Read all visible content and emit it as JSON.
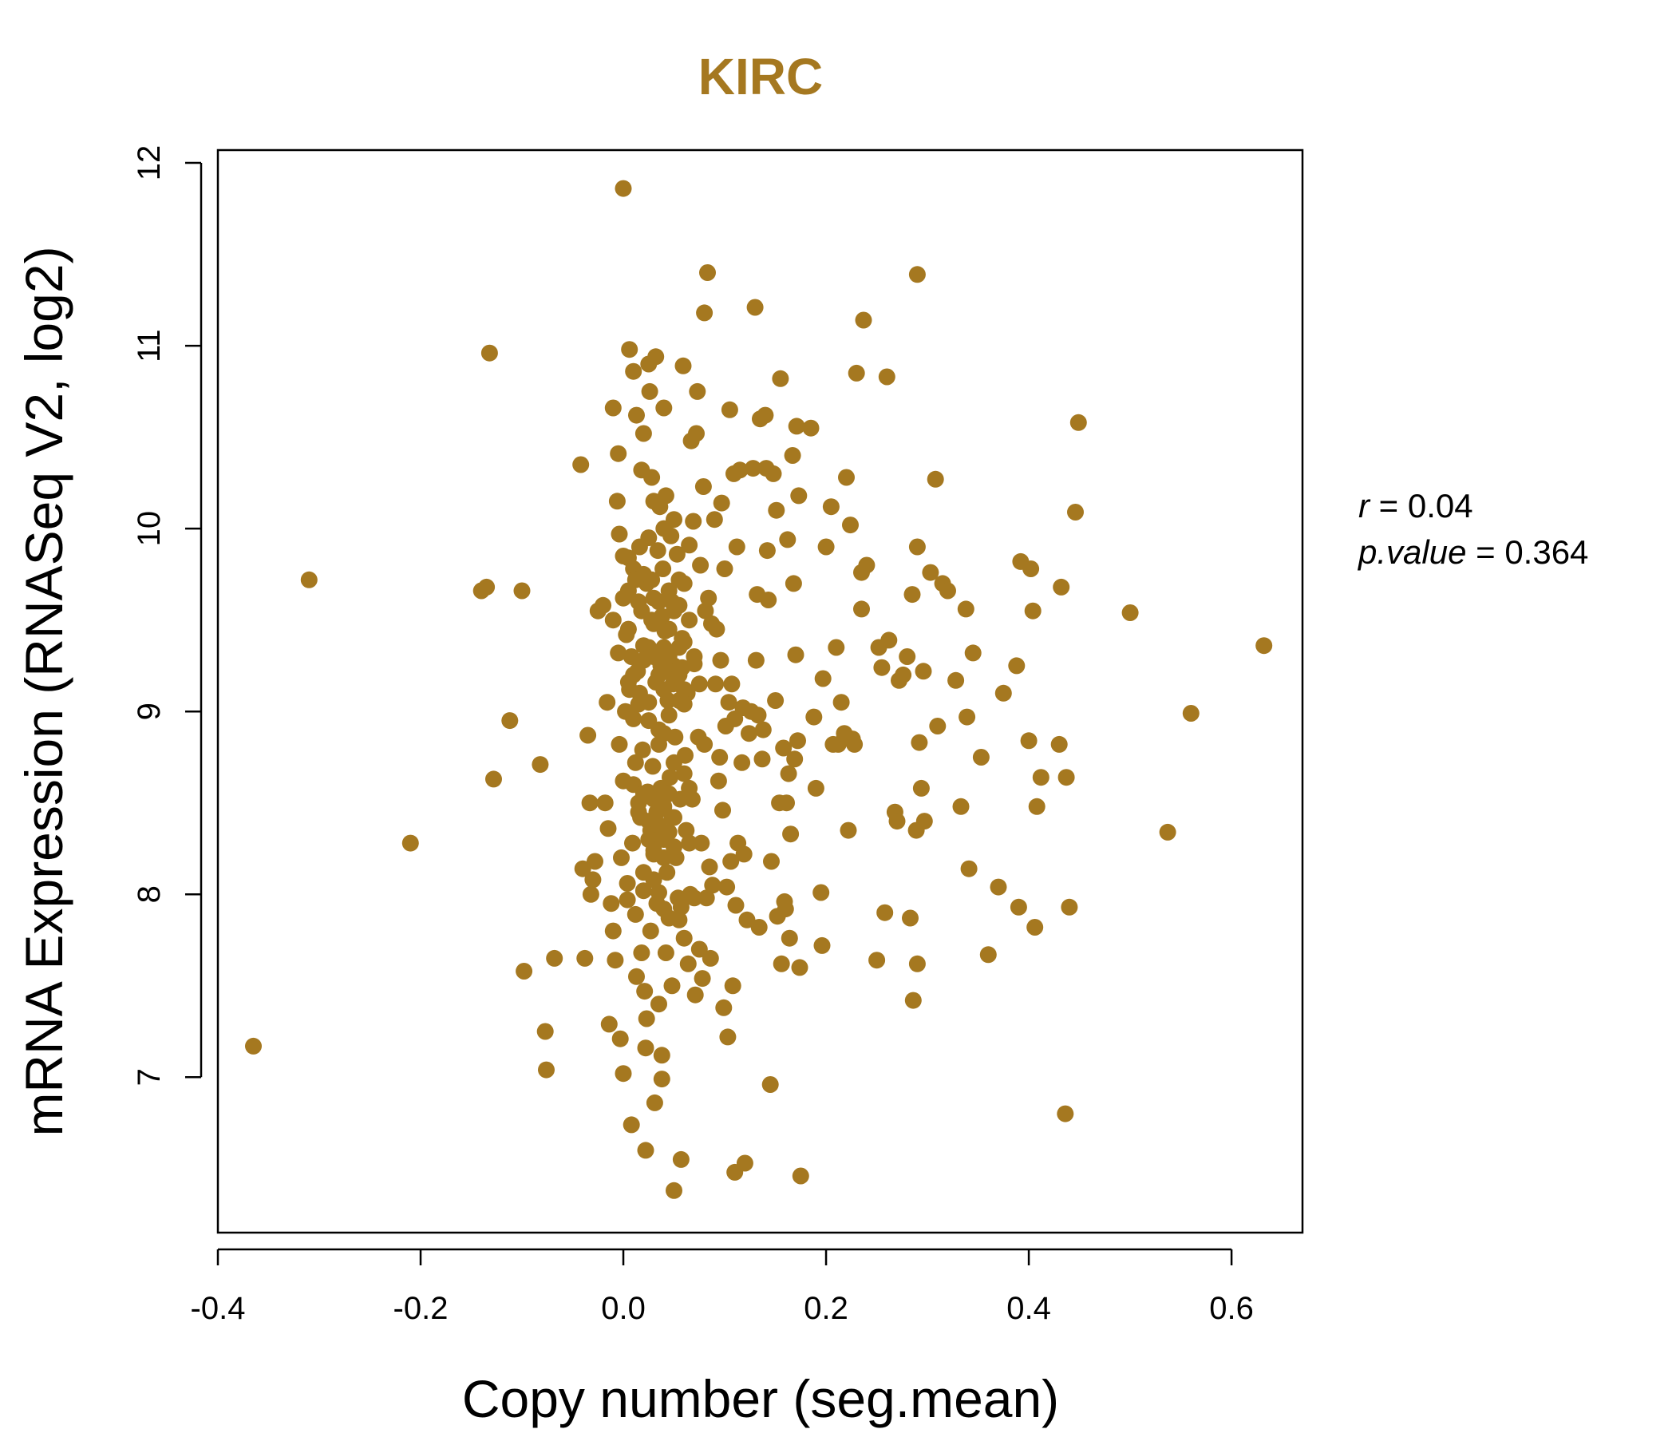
{
  "chart_data": {
    "type": "scatter",
    "title": "KIRC",
    "xlabel": "Copy number (seg.mean)",
    "ylabel": "mRNA Expression (RNASeq V2, log2)",
    "xlim": [
      -0.4,
      0.67
    ],
    "ylim": [
      6.15,
      12.07
    ],
    "x_ticks": [
      -0.4,
      -0.2,
      0.0,
      0.2,
      0.4,
      0.6
    ],
    "x_tick_labels": [
      "-0.4",
      "-0.2",
      "0.0",
      "0.2",
      "0.4",
      "0.6"
    ],
    "y_ticks": [
      7,
      8,
      9,
      10,
      11,
      12
    ],
    "y_tick_labels": [
      "7",
      "8",
      "9",
      "10",
      "11",
      "12"
    ],
    "grid": false,
    "colors": {
      "points": "#A57820",
      "title": "#A57820",
      "axes": "#000000"
    },
    "annotations": {
      "r_label": "r",
      "r_eq": " = ",
      "r_value": "0.04",
      "p_label": "p.value",
      "p_eq": " = ",
      "p_value": "0.364"
    },
    "points": [
      [
        -0.365,
        7.17
      ],
      [
        -0.31,
        9.72
      ],
      [
        -0.21,
        8.28
      ],
      [
        -0.14,
        9.66
      ],
      [
        -0.135,
        9.68
      ],
      [
        -0.132,
        10.96
      ],
      [
        -0.128,
        8.63
      ],
      [
        -0.112,
        8.95
      ],
      [
        -0.1,
        9.66
      ],
      [
        -0.098,
        7.58
      ],
      [
        -0.082,
        8.71
      ],
      [
        -0.077,
        7.25
      ],
      [
        -0.076,
        7.04
      ],
      [
        -0.068,
        7.65
      ],
      [
        -0.042,
        10.35
      ],
      [
        -0.04,
        8.14
      ],
      [
        -0.038,
        7.65
      ],
      [
        -0.035,
        8.87
      ],
      [
        -0.033,
        8.5
      ],
      [
        -0.032,
        8.0
      ],
      [
        -0.03,
        8.08
      ],
      [
        -0.028,
        8.18
      ],
      [
        -0.025,
        9.55
      ],
      [
        -0.02,
        9.58
      ],
      [
        -0.018,
        8.5
      ],
      [
        -0.016,
        9.05
      ],
      [
        -0.015,
        8.36
      ],
      [
        -0.014,
        7.29
      ],
      [
        -0.012,
        7.95
      ],
      [
        -0.01,
        7.8
      ],
      [
        -0.008,
        7.64
      ],
      [
        -0.01,
        10.66
      ],
      [
        -0.006,
        10.15
      ],
      [
        -0.005,
        10.41
      ],
      [
        -0.004,
        9.97
      ],
      [
        -0.004,
        8.82
      ],
      [
        -0.003,
        7.21
      ],
      [
        -0.002,
        8.2
      ],
      [
        0.0,
        11.86
      ],
      [
        0.0,
        9.62
      ],
      [
        0.0,
        7.02
      ],
      [
        0.0,
        8.62
      ],
      [
        0.002,
        9.0
      ],
      [
        0.003,
        9.42
      ],
      [
        0.004,
        8.06
      ],
      [
        0.004,
        7.97
      ],
      [
        0.005,
        9.84
      ],
      [
        0.006,
        10.98
      ],
      [
        0.006,
        9.12
      ],
      [
        0.008,
        9.3
      ],
      [
        0.008,
        6.74
      ],
      [
        0.009,
        8.28
      ],
      [
        0.01,
        10.86
      ],
      [
        0.01,
        9.78
      ],
      [
        0.01,
        8.96
      ],
      [
        0.012,
        7.89
      ],
      [
        0.012,
        8.72
      ],
      [
        0.013,
        7.55
      ],
      [
        0.013,
        10.62
      ],
      [
        0.014,
        9.22
      ],
      [
        0.015,
        8.5
      ],
      [
        0.016,
        9.1
      ],
      [
        0.016,
        9.9
      ],
      [
        0.017,
        8.42
      ],
      [
        0.018,
        7.68
      ],
      [
        0.018,
        10.32
      ],
      [
        0.019,
        8.79
      ],
      [
        0.02,
        10.52
      ],
      [
        0.02,
        9.36
      ],
      [
        0.02,
        8.12
      ],
      [
        0.021,
        7.47
      ],
      [
        0.022,
        6.6
      ],
      [
        0.022,
        7.16
      ],
      [
        0.023,
        7.32
      ],
      [
        0.023,
        9.7
      ],
      [
        0.024,
        8.56
      ],
      [
        0.025,
        10.9
      ],
      [
        0.025,
        9.05
      ],
      [
        0.026,
        10.75
      ],
      [
        0.027,
        8.35
      ],
      [
        0.027,
        7.8
      ],
      [
        0.028,
        9.5
      ],
      [
        0.028,
        10.28
      ],
      [
        0.029,
        8.7
      ],
      [
        0.03,
        9.62
      ],
      [
        0.03,
        10.15
      ],
      [
        0.03,
        8.22
      ],
      [
        0.031,
        6.86
      ],
      [
        0.032,
        10.94
      ],
      [
        0.032,
        9.16
      ],
      [
        0.033,
        8.45
      ],
      [
        0.033,
        7.95
      ],
      [
        0.034,
        9.88
      ],
      [
        0.035,
        8.01
      ],
      [
        0.035,
        7.4
      ],
      [
        0.036,
        10.12
      ],
      [
        0.037,
        9.25
      ],
      [
        0.037,
        8.58
      ],
      [
        0.038,
        7.12
      ],
      [
        0.038,
        6.99
      ],
      [
        0.039,
        9.78
      ],
      [
        0.04,
        10.66
      ],
      [
        0.04,
        8.88
      ],
      [
        0.04,
        8.3
      ],
      [
        0.041,
        9.44
      ],
      [
        0.042,
        7.68
      ],
      [
        0.042,
        10.18
      ],
      [
        0.043,
        8.12
      ],
      [
        0.044,
        9.06
      ],
      [
        0.045,
        9.3
      ],
      [
        0.045,
        7.87
      ],
      [
        0.046,
        8.64
      ],
      [
        0.047,
        9.96
      ],
      [
        0.048,
        8.42
      ],
      [
        0.048,
        7.5
      ],
      [
        0.049,
        9.15
      ],
      [
        0.05,
        6.38
      ],
      [
        0.05,
        9.55
      ],
      [
        0.051,
        8.86
      ],
      [
        0.052,
        8.2
      ],
      [
        0.053,
        9.86
      ],
      [
        0.054,
        7.98
      ],
      [
        0.055,
        9.72
      ],
      [
        0.056,
        8.52
      ],
      [
        0.057,
        6.55
      ],
      [
        0.057,
        7.93
      ],
      [
        0.058,
        9.24
      ],
      [
        0.059,
        10.89
      ],
      [
        0.06,
        9.38
      ],
      [
        0.061,
        8.76
      ],
      [
        0.062,
        8.35
      ],
      [
        0.063,
        9.1
      ],
      [
        0.064,
        7.62
      ],
      [
        0.065,
        9.91
      ],
      [
        0.066,
        8.0
      ],
      [
        0.067,
        10.48
      ],
      [
        0.068,
        8.52
      ],
      [
        0.069,
        10.04
      ],
      [
        0.07,
        9.26
      ],
      [
        0.071,
        7.45
      ],
      [
        0.072,
        10.52
      ],
      [
        0.073,
        10.75
      ],
      [
        0.074,
        8.86
      ],
      [
        0.075,
        7.7
      ],
      [
        0.076,
        9.8
      ],
      [
        0.077,
        8.28
      ],
      [
        0.078,
        7.54
      ],
      [
        0.079,
        10.23
      ],
      [
        0.08,
        11.18
      ],
      [
        0.08,
        8.82
      ],
      [
        0.081,
        9.55
      ],
      [
        0.082,
        7.98
      ],
      [
        0.083,
        11.4
      ],
      [
        0.084,
        9.62
      ],
      [
        0.085,
        8.15
      ],
      [
        0.086,
        7.65
      ],
      [
        0.087,
        9.48
      ],
      [
        0.088,
        8.05
      ],
      [
        0.09,
        10.05
      ],
      [
        0.091,
        9.15
      ],
      [
        0.092,
        9.45
      ],
      [
        0.094,
        8.62
      ],
      [
        0.095,
        8.75
      ],
      [
        0.096,
        9.28
      ],
      [
        0.097,
        10.14
      ],
      [
        0.098,
        8.46
      ],
      [
        0.099,
        7.38
      ],
      [
        0.1,
        9.78
      ],
      [
        0.101,
        8.92
      ],
      [
        0.102,
        8.04
      ],
      [
        0.103,
        7.22
      ],
      [
        0.104,
        9.05
      ],
      [
        0.105,
        10.65
      ],
      [
        0.106,
        8.18
      ],
      [
        0.107,
        9.15
      ],
      [
        0.108,
        7.5
      ],
      [
        0.109,
        10.3
      ],
      [
        0.11,
        6.48
      ],
      [
        0.11,
        8.96
      ],
      [
        0.111,
        7.94
      ],
      [
        0.112,
        9.9
      ],
      [
        0.113,
        8.28
      ],
      [
        0.115,
        10.32
      ],
      [
        0.117,
        8.72
      ],
      [
        0.118,
        9.02
      ],
      [
        0.119,
        8.22
      ],
      [
        0.12,
        6.53
      ],
      [
        0.122,
        7.86
      ],
      [
        0.124,
        8.88
      ],
      [
        0.126,
        9.0
      ],
      [
        0.128,
        10.33
      ],
      [
        0.13,
        11.21
      ],
      [
        0.131,
        9.28
      ],
      [
        0.132,
        9.64
      ],
      [
        0.133,
        8.98
      ],
      [
        0.134,
        7.82
      ],
      [
        0.135,
        10.6
      ],
      [
        0.137,
        8.74
      ],
      [
        0.138,
        8.9
      ],
      [
        0.14,
        10.62
      ],
      [
        0.141,
        10.33
      ],
      [
        0.142,
        9.88
      ],
      [
        0.143,
        9.61
      ],
      [
        0.145,
        6.96
      ],
      [
        0.146,
        8.18
      ],
      [
        0.148,
        10.3
      ],
      [
        0.15,
        9.06
      ],
      [
        0.151,
        10.1
      ],
      [
        0.152,
        7.88
      ],
      [
        0.154,
        8.5
      ],
      [
        0.155,
        10.82
      ],
      [
        0.156,
        7.62
      ],
      [
        0.158,
        8.8
      ],
      [
        0.159,
        7.96
      ],
      [
        0.16,
        7.92
      ],
      [
        0.161,
        8.5
      ],
      [
        0.162,
        9.94
      ],
      [
        0.163,
        8.66
      ],
      [
        0.164,
        7.76
      ],
      [
        0.165,
        8.33
      ],
      [
        0.167,
        10.4
      ],
      [
        0.168,
        9.7
      ],
      [
        0.169,
        8.74
      ],
      [
        0.17,
        9.31
      ],
      [
        0.171,
        10.56
      ],
      [
        0.172,
        8.84
      ],
      [
        0.173,
        10.18
      ],
      [
        0.174,
        7.6
      ],
      [
        0.175,
        6.46
      ],
      [
        0.185,
        10.55
      ],
      [
        0.188,
        8.97
      ],
      [
        0.19,
        8.58
      ],
      [
        0.195,
        8.01
      ],
      [
        0.196,
        7.72
      ],
      [
        0.197,
        9.18
      ],
      [
        0.2,
        9.9
      ],
      [
        0.205,
        10.12
      ],
      [
        0.207,
        8.82
      ],
      [
        0.21,
        9.35
      ],
      [
        0.212,
        8.82
      ],
      [
        0.215,
        9.05
      ],
      [
        0.218,
        8.88
      ],
      [
        0.22,
        10.28
      ],
      [
        0.222,
        8.35
      ],
      [
        0.224,
        10.02
      ],
      [
        0.226,
        8.85
      ],
      [
        0.228,
        8.82
      ],
      [
        0.23,
        10.85
      ],
      [
        0.235,
        9.76
      ],
      [
        0.235,
        9.56
      ],
      [
        0.237,
        11.14
      ],
      [
        0.24,
        9.8
      ],
      [
        0.25,
        7.64
      ],
      [
        0.252,
        9.35
      ],
      [
        0.255,
        9.24
      ],
      [
        0.258,
        7.9
      ],
      [
        0.26,
        10.83
      ],
      [
        0.262,
        9.39
      ],
      [
        0.268,
        8.45
      ],
      [
        0.27,
        8.4
      ],
      [
        0.272,
        9.17
      ],
      [
        0.276,
        9.2
      ],
      [
        0.28,
        9.3
      ],
      [
        0.283,
        7.87
      ],
      [
        0.285,
        9.64
      ],
      [
        0.286,
        7.42
      ],
      [
        0.289,
        8.35
      ],
      [
        0.29,
        11.39
      ],
      [
        0.29,
        9.9
      ],
      [
        0.29,
        7.62
      ],
      [
        0.292,
        8.83
      ],
      [
        0.294,
        8.58
      ],
      [
        0.296,
        9.22
      ],
      [
        0.297,
        8.4
      ],
      [
        0.303,
        9.76
      ],
      [
        0.308,
        10.27
      ],
      [
        0.31,
        8.92
      ],
      [
        0.315,
        9.7
      ],
      [
        0.32,
        9.66
      ],
      [
        0.328,
        9.17
      ],
      [
        0.333,
        8.48
      ],
      [
        0.338,
        9.56
      ],
      [
        0.339,
        8.97
      ],
      [
        0.341,
        8.14
      ],
      [
        0.345,
        9.32
      ],
      [
        0.353,
        8.75
      ],
      [
        0.36,
        7.67
      ],
      [
        0.37,
        8.04
      ],
      [
        0.375,
        9.1
      ],
      [
        0.388,
        9.25
      ],
      [
        0.39,
        7.93
      ],
      [
        0.392,
        9.82
      ],
      [
        0.4,
        8.84
      ],
      [
        0.402,
        9.78
      ],
      [
        0.404,
        9.55
      ],
      [
        0.406,
        7.82
      ],
      [
        0.408,
        8.48
      ],
      [
        0.412,
        8.64
      ],
      [
        0.43,
        8.82
      ],
      [
        0.432,
        9.68
      ],
      [
        0.436,
        6.8
      ],
      [
        0.437,
        8.64
      ],
      [
        0.44,
        7.93
      ],
      [
        0.446,
        10.09
      ],
      [
        0.449,
        10.58
      ],
      [
        0.5,
        9.54
      ],
      [
        0.537,
        8.34
      ],
      [
        0.56,
        8.99
      ],
      [
        0.632,
        9.36
      ],
      [
        0.0,
        9.85
      ],
      [
        0.005,
        9.45
      ],
      [
        0.01,
        9.2
      ],
      [
        0.015,
        9.6
      ],
      [
        0.02,
        9.75
      ],
      [
        0.025,
        9.35
      ],
      [
        0.03,
        9.48
      ],
      [
        0.035,
        9.2
      ],
      [
        0.04,
        9.35
      ],
      [
        0.045,
        9.45
      ],
      [
        0.05,
        9.25
      ],
      [
        0.055,
        9.35
      ],
      [
        0.01,
        8.6
      ],
      [
        0.015,
        8.45
      ],
      [
        0.02,
        8.55
      ],
      [
        0.025,
        8.4
      ],
      [
        0.03,
        8.52
      ],
      [
        0.035,
        8.38
      ],
      [
        0.04,
        8.48
      ],
      [
        0.045,
        8.55
      ],
      [
        0.05,
        8.42
      ],
      [
        0.02,
        9.28
      ],
      [
        0.03,
        9.3
      ],
      [
        0.04,
        9.12
      ],
      [
        0.045,
        9.22
      ],
      [
        0.05,
        9.18
      ],
      [
        0.055,
        9.2
      ],
      [
        0.06,
        9.12
      ],
      [
        0.035,
        9.6
      ],
      [
        0.045,
        9.66
      ],
      [
        0.055,
        9.58
      ],
      [
        0.06,
        9.7
      ],
      [
        0.025,
        8.3
      ],
      [
        0.03,
        8.24
      ],
      [
        0.04,
        8.2
      ],
      [
        0.045,
        8.34
      ],
      [
        0.05,
        8.26
      ],
      [
        0.065,
        8.28
      ],
      [
        -0.005,
        9.32
      ],
      [
        0.005,
        9.16
      ],
      [
        0.015,
        9.04
      ],
      [
        0.025,
        8.95
      ],
      [
        0.035,
        8.9
      ],
      [
        0.045,
        8.98
      ],
      [
        0.055,
        9.06
      ],
      [
        0.06,
        9.04
      ],
      [
        0.02,
        8.02
      ],
      [
        0.03,
        8.08
      ],
      [
        0.04,
        7.92
      ],
      [
        0.055,
        7.86
      ],
      [
        0.06,
        7.76
      ],
      [
        0.07,
        7.98
      ],
      [
        0.035,
        8.82
      ],
      [
        0.05,
        8.72
      ],
      [
        0.06,
        8.66
      ],
      [
        0.065,
        8.58
      ],
      [
        0.025,
        9.95
      ],
      [
        0.04,
        10.0
      ],
      [
        0.05,
        10.05
      ],
      [
        -0.01,
        9.5
      ],
      [
        0.005,
        9.66
      ],
      [
        0.012,
        9.72
      ],
      [
        0.018,
        9.55
      ],
      [
        0.028,
        9.72
      ],
      [
        0.038,
        9.52
      ],
      [
        0.048,
        9.6
      ],
      [
        0.058,
        9.4
      ],
      [
        0.065,
        9.5
      ],
      [
        0.07,
        9.3
      ],
      [
        0.075,
        9.15
      ]
    ]
  }
}
